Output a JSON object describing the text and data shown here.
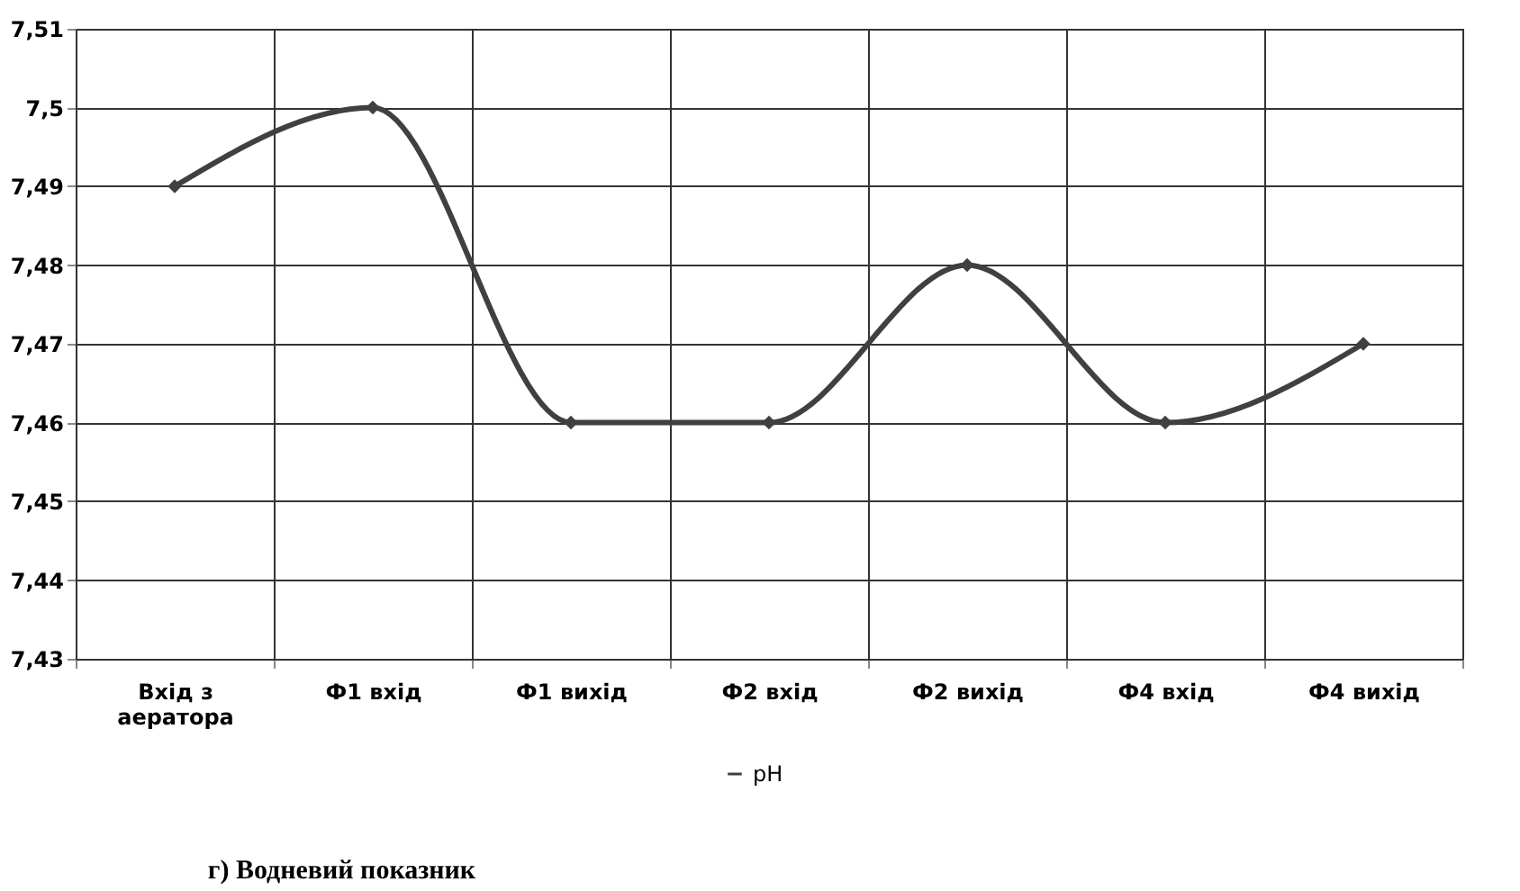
{
  "chart_data": {
    "type": "line",
    "categories": [
      "Вхід з\nаератора",
      "Ф1 вхід",
      "Ф1 вихід",
      "Ф2 вхід",
      "Ф2 вихід",
      "Ф4 вхід",
      "Ф4 вихід"
    ],
    "series": [
      {
        "name": "pH",
        "color": "#404040",
        "values": [
          7.49,
          7.5,
          7.46,
          7.46,
          7.48,
          7.46,
          7.47
        ]
      }
    ],
    "ylim": [
      7.43,
      7.51
    ],
    "yticks": [
      {
        "value": 7.43,
        "label": "7,43"
      },
      {
        "value": 7.44,
        "label": "7,44"
      },
      {
        "value": 7.45,
        "label": "7,45"
      },
      {
        "value": 7.46,
        "label": "7,46"
      },
      {
        "value": 7.47,
        "label": "7,47"
      },
      {
        "value": 7.48,
        "label": "7,48"
      },
      {
        "value": 7.49,
        "label": "7,49"
      },
      {
        "value": 7.5,
        "label": "7,5"
      },
      {
        "value": 7.51,
        "label": "7,51"
      }
    ],
    "annotations": [
      "г) Водневий показник"
    ],
    "grid": true,
    "legend": "bottom",
    "marker": "diamond",
    "line_style": "solid"
  }
}
